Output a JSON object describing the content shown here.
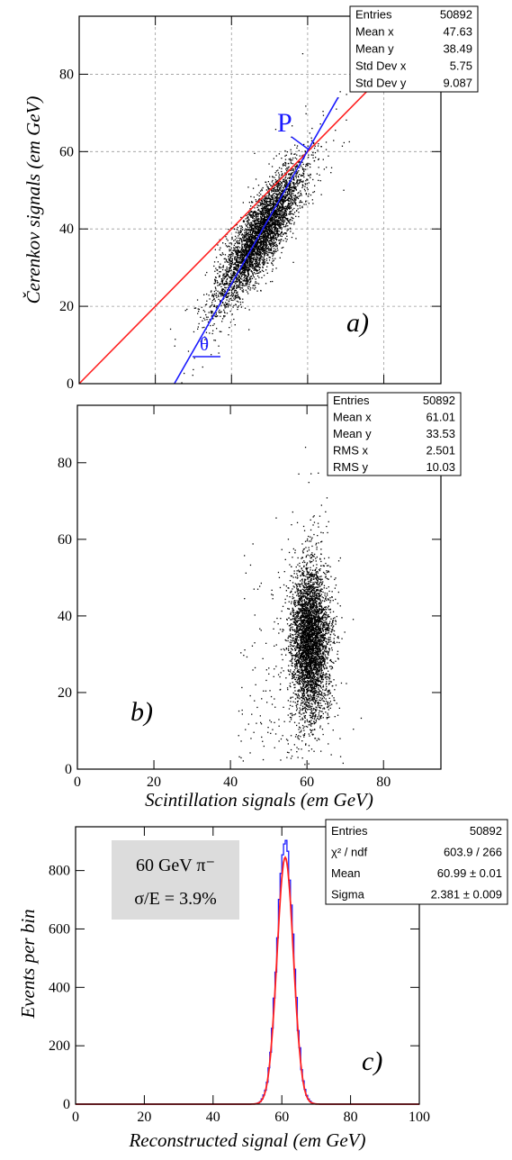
{
  "chart_data": [
    {
      "type": "scatter",
      "panel_label": "a)",
      "ylabel": "Čerenkov signals (em GeV)",
      "xlim": [
        0,
        95
      ],
      "ylim": [
        0,
        95
      ],
      "yticks": [
        "0",
        "20",
        "40",
        "60",
        "80"
      ],
      "grid": true,
      "cloud": {
        "center": [
          47.6,
          38.5
        ],
        "sd": [
          5.75,
          9.09
        ],
        "corr": 0.85,
        "n_drawn": 4200
      },
      "stats": [
        {
          "label": "Entries",
          "value": "50892"
        },
        {
          "label": "Mean x",
          "value": "47.63"
        },
        {
          "label": "Mean y",
          "value": "38.49"
        },
        {
          "label": "Std Dev x",
          "value": "5.75"
        },
        {
          "label": "Std Dev y",
          "value": "9.087"
        }
      ],
      "lines": [
        {
          "name": "diagonal",
          "color": "#ff2020",
          "from": [
            0,
            0
          ],
          "to": [
            76,
            76
          ]
        },
        {
          "name": "rotation-axis",
          "color": "#1a1aff",
          "from": [
            25,
            0
          ],
          "to": [
            68,
            74
          ]
        }
      ],
      "annotations": {
        "point": "P",
        "angle": "θ"
      },
      "colors": {
        "points": "#000000",
        "diagonal": "#ff2020",
        "axis": "#1a1aff"
      }
    },
    {
      "type": "scatter",
      "panel_label": "b)",
      "xlabel": "Scintillation signals (em GeV)",
      "xlim": [
        0,
        95
      ],
      "ylim": [
        0,
        95
      ],
      "xticks": [
        "0",
        "20",
        "40",
        "60",
        "80"
      ],
      "yticks": [
        "0",
        "20",
        "40",
        "60",
        "80"
      ],
      "grid": false,
      "cloud": {
        "center": [
          61.0,
          33.5
        ],
        "sd": [
          2.5,
          10.0
        ],
        "corr": 0.0,
        "n_drawn": 4200
      },
      "stats": [
        {
          "label": "Entries",
          "value": "50892"
        },
        {
          "label": "Mean x",
          "value": "61.01"
        },
        {
          "label": "Mean y",
          "value": "33.53"
        },
        {
          "label": "RMS x",
          "value": "2.501"
        },
        {
          "label": "RMS y",
          "value": "10.03"
        }
      ]
    },
    {
      "type": "line",
      "panel_label": "c)",
      "xlabel": "Reconstructed signal (em GeV)",
      "ylabel": "Events per bin",
      "xlim": [
        0,
        100
      ],
      "ylim": [
        0,
        950
      ],
      "xticks": [
        "0",
        "20",
        "40",
        "60",
        "80",
        "100"
      ],
      "yticks": [
        "0",
        "200",
        "400",
        "600",
        "800"
      ],
      "grid": false,
      "histogram": {
        "mean": 61.0,
        "sigma": 2.381,
        "peak": 900,
        "color": "#1a1aff"
      },
      "fit": {
        "mean": 60.99,
        "sigma": 2.381,
        "peak": 845,
        "color": "#ff2020"
      },
      "info_box": {
        "line1": "60 GeV π⁻",
        "line2": "σ/E = 3.9%"
      },
      "stats": [
        {
          "label": "Entries",
          "value": "50892"
        },
        {
          "label": "χ² / ndf",
          "value": "603.9 / 266"
        },
        {
          "label": "Mean",
          "value": "60.99 ± 0.01"
        },
        {
          "label": "Sigma",
          "value": "2.381 ± 0.009"
        }
      ]
    }
  ]
}
